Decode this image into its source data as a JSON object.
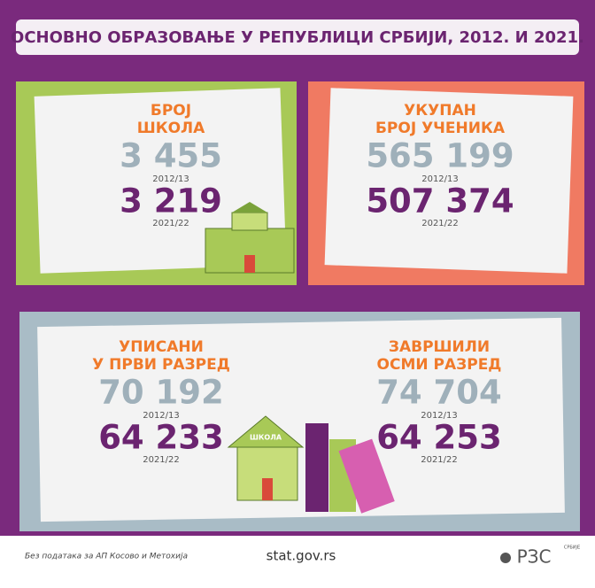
{
  "title": "ОСНОВНО ОБРАЗОВАЊЕ У РЕПУБЛИЦИ СРБИЈИ, 2012. И 2021.",
  "cards": [
    {
      "heading": [
        "БРОЈ",
        "ШКОЛА"
      ],
      "value_old": "3 455",
      "period_old": "2012/13",
      "value_new": "3 219",
      "period_new": "2021/22"
    },
    {
      "heading": [
        "УКУПАН",
        "БРОЈ УЧЕНИКА"
      ],
      "value_old": "565 199",
      "period_old": "2012/13",
      "value_new": "507 374",
      "period_new": "2021/22"
    },
    {
      "heading": [
        "УПИСАНИ",
        "У ПРВИ РАЗРЕД"
      ],
      "value_old": "70 192",
      "period_old": "2012/13",
      "value_new": "64 233",
      "period_new": "2021/22"
    },
    {
      "heading": [
        "ЗАВРШИЛИ",
        "ОСМИ РАЗРЕД"
      ],
      "value_old": "74 704",
      "period_old": "2012/13",
      "value_new": "64 253",
      "period_new": "2021/22"
    }
  ],
  "school_sign": "ШКОЛА",
  "footer": {
    "note": "Без података за АП Косово и Метохија",
    "site": "stat.gov.rs",
    "logo": "РЗС",
    "logo_sub": "СРБИЈЕ"
  }
}
